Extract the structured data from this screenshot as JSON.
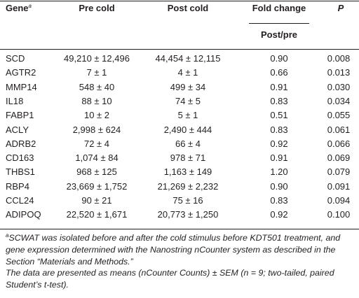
{
  "table": {
    "header": {
      "gene": {
        "text": "Gene",
        "superscript": "a"
      },
      "pre": "Pre cold",
      "post": "Post cold",
      "fold": "Fold change",
      "fold_sub": "Post/pre",
      "p": "P"
    },
    "rows": [
      [
        "SCD",
        "49,210 ± 12,496",
        "44,454 ± 12,115",
        "0.90",
        "0.008"
      ],
      [
        "AGTR2",
        "7 ± 1",
        "4 ± 1",
        "0.66",
        "0.013"
      ],
      [
        "MMP14",
        "548 ± 40",
        "499 ± 34",
        "0.91",
        "0.030"
      ],
      [
        "IL18",
        "88 ± 10",
        "74 ± 5",
        "0.83",
        "0.034"
      ],
      [
        "FABP1",
        "10 ± 2",
        "5 ± 1",
        "0.51",
        "0.055"
      ],
      [
        "ACLY",
        "2,998 ± 624",
        "2,490 ± 444",
        "0.83",
        "0.061"
      ],
      [
        "ADRB2",
        "72 ± 4",
        "66 ± 4",
        "0.92",
        "0.066"
      ],
      [
        "CD163",
        "1,074 ± 84",
        "978 ± 71",
        "0.91",
        "0.069"
      ],
      [
        "THBS1",
        "968 ± 125",
        "1,163 ± 149",
        "1.20",
        "0.079"
      ],
      [
        "RBP4",
        "23,669 ± 1,752",
        "21,269 ± 2,232",
        "0.90",
        "0.091"
      ],
      [
        "CCL24",
        "90 ± 21",
        "75 ± 16",
        "0.83",
        "0.094"
      ],
      [
        "ADIPOQ",
        "22,520 ± 1,671",
        "20,773 ± 1,250",
        "0.92",
        "0.100"
      ]
    ],
    "footnotes": [
      {
        "marker": "a",
        "text": "SCWAT was isolated before and after the cold stimulus before KDT501 treatment, and gene expression determined with the Nanostring nCounter system as described in the Section “Materials and Methods.”"
      },
      {
        "text": "The data are presented as means (nCounter Counts) ± SEM (n = 9; two-tailed, paired Student’s t-test)."
      }
    ]
  }
}
